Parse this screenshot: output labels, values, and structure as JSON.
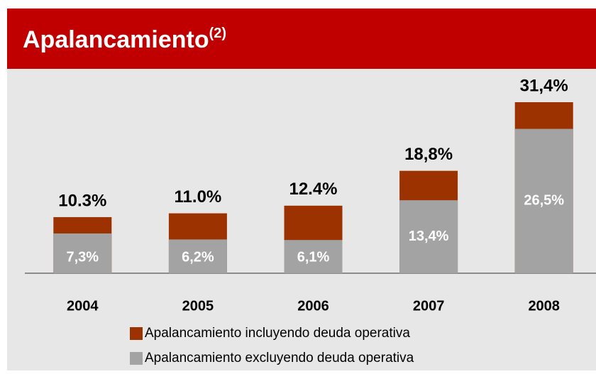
{
  "chart_data": {
    "type": "bar",
    "title": "Apalancamiento",
    "title_superscript": "(2)",
    "categories": [
      "2004",
      "2005",
      "2006",
      "2007",
      "2008"
    ],
    "series": [
      {
        "name": "Apalancamiento incluyendo deuda operativa",
        "color": "#9b3200",
        "values": [
          10.3,
          11.0,
          12.4,
          18.8,
          31.4
        ],
        "value_labels": [
          "10.3%",
          "11.0%",
          "12.4%",
          "18,8%",
          "31,4%"
        ]
      },
      {
        "name": "Apalancamiento excluyendo deuda operativa",
        "color": "#a3a3a3",
        "values": [
          7.3,
          6.2,
          6.1,
          13.4,
          26.5
        ],
        "value_labels": [
          "7,3%",
          "6,2%",
          "6,1%",
          "13,4%",
          "26,5%"
        ]
      }
    ]
  }
}
